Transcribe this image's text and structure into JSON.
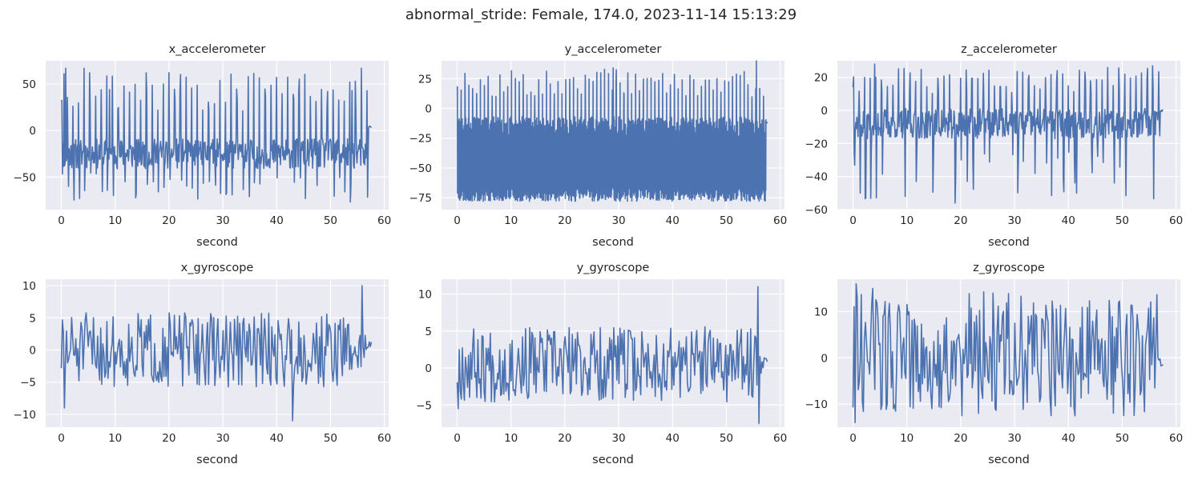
{
  "figure": {
    "title": "abnormal_stride: Female, 174.0, 2023-11-14 15:13:29"
  },
  "colors": {
    "plot_bg": "#eaeaf2",
    "grid": "#ffffff",
    "line": "#4c72b0",
    "text": "#262626"
  },
  "chart_data": [
    {
      "type": "line",
      "title": "x_accelerometer",
      "xlabel": "second",
      "ylabel": "",
      "xlim": [
        -2.9,
        60.8
      ],
      "ylim": [
        -85,
        75
      ],
      "xticks": [
        0,
        10,
        20,
        30,
        40,
        50,
        60
      ],
      "yticks": [
        -50,
        0,
        50
      ],
      "series": [
        {
          "x_start": 0,
          "x_end": 57.6,
          "pattern": "spiky_periodic",
          "n": 560,
          "base": -25,
          "lo": -80,
          "hi": 67,
          "period": 1.05,
          "seed": 11,
          "peaks_hint": [
            [
              0.5,
              61
            ],
            [
              0.8,
              67
            ],
            [
              4.2,
              67
            ],
            [
              9.0,
              44
            ],
            [
              22.0,
              42
            ],
            [
              54.0,
              43
            ],
            [
              55.7,
              67
            ]
          ],
          "end_value": 4
        }
      ]
    },
    {
      "type": "line",
      "title": "y_accelerometer",
      "xlabel": "second",
      "ylabel": "",
      "xlim": [
        -2.9,
        60.8
      ],
      "ylim": [
        -85,
        40
      ],
      "xticks": [
        0,
        10,
        20,
        30,
        40,
        50,
        60
      ],
      "yticks": [
        -75,
        -50,
        -25,
        0,
        25
      ],
      "series": [
        {
          "x_start": 0,
          "x_end": 57.6,
          "pattern": "dense_band",
          "n": 1400,
          "base": -45,
          "lo": -78,
          "hi": 33,
          "period": 0.72,
          "seed": 23,
          "peaks_hint": [
            [
              29.0,
              34
            ],
            [
              55.6,
              40
            ]
          ],
          "end_value": -12
        }
      ]
    },
    {
      "type": "line",
      "title": "z_accelerometer",
      "xlabel": "second",
      "ylabel": "",
      "xlim": [
        -2.9,
        60.8
      ],
      "ylim": [
        -60,
        30
      ],
      "xticks": [
        0,
        10,
        20,
        30,
        40,
        50,
        60
      ],
      "yticks": [
        -60,
        -40,
        -20,
        0,
        20
      ],
      "series": [
        {
          "x_start": 0,
          "x_end": 57.6,
          "pattern": "spiky_periodic",
          "n": 560,
          "base": -8,
          "lo": -56,
          "hi": 28,
          "period": 1.05,
          "seed": 37,
          "peaks_hint": [
            [
              4.0,
              28
            ],
            [
              19.0,
              -56
            ],
            [
              41.5,
              -50
            ],
            [
              55.6,
              27
            ]
          ],
          "end_value": 0
        }
      ]
    },
    {
      "type": "line",
      "title": "x_gyroscope",
      "xlabel": "second",
      "ylabel": "",
      "xlim": [
        -2.9,
        60.8
      ],
      "ylim": [
        -12,
        11
      ],
      "xticks": [
        0,
        10,
        20,
        30,
        40,
        50,
        60
      ],
      "yticks": [
        -10,
        -5,
        0,
        5,
        10
      ],
      "series": [
        {
          "x_start": 0,
          "x_end": 57.6,
          "pattern": "noisy",
          "n": 300,
          "base": 0,
          "lo": -11,
          "hi": 10,
          "period": 0.5,
          "seed": 51,
          "peaks_hint": [
            [
              0.6,
              -9
            ],
            [
              43.0,
              -11
            ],
            [
              55.8,
              10
            ]
          ],
          "end_value": 1
        }
      ]
    },
    {
      "type": "line",
      "title": "y_gyroscope",
      "xlabel": "second",
      "ylabel": "",
      "xlim": [
        -2.9,
        60.8
      ],
      "ylim": [
        -8,
        12
      ],
      "xticks": [
        0,
        10,
        20,
        30,
        40,
        50,
        60
      ],
      "yticks": [
        -5,
        0,
        5,
        10
      ],
      "series": [
        {
          "x_start": 0,
          "x_end": 57.6,
          "pattern": "noisy",
          "n": 300,
          "base": 0.5,
          "lo": -7.5,
          "hi": 11,
          "period": 0.5,
          "seed": 67,
          "peaks_hint": [
            [
              0.2,
              -5.5
            ],
            [
              55.8,
              11
            ],
            [
              56.0,
              -7.5
            ]
          ],
          "end_value": 1
        }
      ]
    },
    {
      "type": "line",
      "title": "z_gyroscope",
      "xlabel": "second",
      "ylabel": "",
      "xlim": [
        -2.9,
        60.8
      ],
      "ylim": [
        -15,
        17
      ],
      "xticks": [
        0,
        10,
        20,
        30,
        40,
        50,
        60
      ],
      "yticks": [
        -10,
        0,
        10
      ],
      "series": [
        {
          "x_start": 0,
          "x_end": 57.6,
          "pattern": "noisy_wide",
          "n": 300,
          "base": 0,
          "lo": -14,
          "hi": 16,
          "period": 0.55,
          "seed": 83,
          "peaks_hint": [
            [
              0.3,
              -14
            ],
            [
              0.5,
              16
            ],
            [
              3.7,
              15
            ],
            [
              26.0,
              14
            ]
          ],
          "end_value": -1
        }
      ]
    }
  ]
}
